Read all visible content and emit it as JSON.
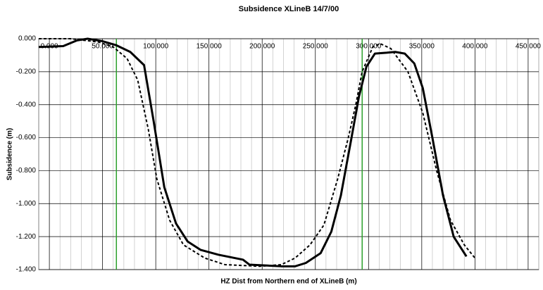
{
  "chart_data": {
    "type": "line",
    "title": "Subsidence XLineB 14/7/00",
    "x_label": "HZ Dist from Northern end of XLineB (m)",
    "y_label": "Subsidence (m)",
    "series": [
      {
        "color": "#000000",
        "dashed": false,
        "x": [
          -10,
          13,
          26,
          36,
          50,
          63,
          76,
          89,
          98,
          108,
          119,
          130,
          142,
          159,
          182,
          188,
          218,
          231,
          241,
          255,
          265,
          274,
          284,
          291,
          298,
          306,
          317,
          325,
          334,
          343,
          351,
          360,
          370,
          380,
          392
        ],
        "values": [
          -0.05,
          -0.045,
          -0.01,
          0,
          -0.015,
          -0.04,
          -0.08,
          -0.16,
          -0.5,
          -0.9,
          -1.12,
          -1.23,
          -1.28,
          -1.31,
          -1.34,
          -1.37,
          -1.38,
          -1.38,
          -1.36,
          -1.3,
          -1.17,
          -0.95,
          -0.6,
          -0.35,
          -0.17,
          -0.09,
          -0.085,
          -0.08,
          -0.09,
          -0.15,
          -0.3,
          -0.6,
          -0.95,
          -1.2,
          -1.32
        ]
      },
      {
        "color": "#000000",
        "dashed": true,
        "x": [
          -10,
          20,
          33,
          46,
          60,
          73,
          83,
          93,
          101,
          113,
          126,
          146,
          165,
          198,
          218,
          231,
          245,
          258,
          271,
          281,
          288,
          294,
          304,
          311,
          321,
          337,
          351,
          364,
          377,
          390,
          400
        ],
        "values": [
          0,
          0,
          -0.01,
          -0.02,
          -0.05,
          -0.12,
          -0.25,
          -0.55,
          -0.85,
          -1.1,
          -1.25,
          -1.33,
          -1.37,
          -1.38,
          -1.37,
          -1.33,
          -1.25,
          -1.13,
          -0.85,
          -0.6,
          -0.4,
          -0.2,
          -0.05,
          -0.03,
          -0.06,
          -0.2,
          -0.45,
          -0.8,
          -1.1,
          -1.25,
          -1.33
        ]
      }
    ],
    "reference_lines": {
      "color": "#2ca02c",
      "x": [
        63,
        294
      ]
    },
    "xlim": [
      -10,
      460
    ],
    "xticks": [
      {
        "value": 0,
        "label": "0.000"
      },
      {
        "value": 50,
        "label": "50.000"
      },
      {
        "value": 100,
        "label": "100.000"
      },
      {
        "value": 150,
        "label": "150.000"
      },
      {
        "value": 200,
        "label": "200.000"
      },
      {
        "value": 250,
        "label": "250.000"
      },
      {
        "value": 300,
        "label": "300.000"
      },
      {
        "value": 350,
        "label": "350.000"
      },
      {
        "value": 400,
        "label": "400.000"
      },
      {
        "value": 450,
        "label": "450.000"
      }
    ],
    "xminor_step": 10,
    "ylim": [
      -1.4,
      0
    ],
    "yticks": [
      {
        "value": 0,
        "label": "0.000"
      },
      {
        "value": -0.2,
        "label": "-0.200"
      },
      {
        "value": -0.4,
        "label": "-0.400"
      },
      {
        "value": -0.6,
        "label": "-0.600"
      },
      {
        "value": -0.8,
        "label": "-0.800"
      },
      {
        "value": -1,
        "label": "-1.000"
      },
      {
        "value": -1.2,
        "label": "-1.200"
      },
      {
        "value": -1.4,
        "label": "-1.400"
      }
    ],
    "grid": true
  }
}
